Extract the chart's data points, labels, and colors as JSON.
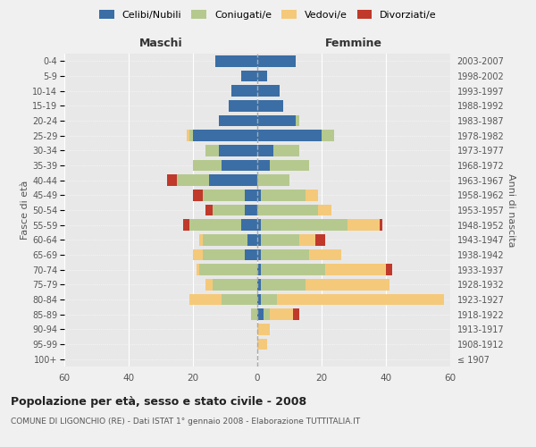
{
  "age_groups": [
    "100+",
    "95-99",
    "90-94",
    "85-89",
    "80-84",
    "75-79",
    "70-74",
    "65-69",
    "60-64",
    "55-59",
    "50-54",
    "45-49",
    "40-44",
    "35-39",
    "30-34",
    "25-29",
    "20-24",
    "15-19",
    "10-14",
    "5-9",
    "0-4"
  ],
  "birth_years": [
    "≤ 1907",
    "1908-1912",
    "1913-1917",
    "1918-1922",
    "1923-1927",
    "1928-1932",
    "1933-1937",
    "1938-1942",
    "1943-1947",
    "1948-1952",
    "1953-1957",
    "1958-1962",
    "1963-1967",
    "1968-1972",
    "1973-1977",
    "1978-1982",
    "1983-1987",
    "1988-1992",
    "1993-1997",
    "1998-2002",
    "2003-2007"
  ],
  "male": {
    "celibi": [
      0,
      0,
      0,
      0,
      0,
      0,
      0,
      4,
      3,
      5,
      4,
      4,
      15,
      11,
      12,
      20,
      12,
      9,
      8,
      5,
      13
    ],
    "coniugati": [
      0,
      0,
      0,
      2,
      11,
      14,
      18,
      13,
      14,
      16,
      10,
      13,
      10,
      9,
      4,
      1,
      0,
      0,
      0,
      0,
      0
    ],
    "vedovi": [
      0,
      0,
      0,
      0,
      10,
      2,
      1,
      3,
      1,
      0,
      0,
      0,
      0,
      0,
      0,
      1,
      0,
      0,
      0,
      0,
      0
    ],
    "divorziati": [
      0,
      0,
      0,
      0,
      0,
      0,
      0,
      0,
      0,
      2,
      2,
      3,
      3,
      0,
      0,
      0,
      0,
      0,
      0,
      0,
      0
    ]
  },
  "female": {
    "nubili": [
      0,
      0,
      0,
      2,
      1,
      1,
      1,
      1,
      1,
      1,
      0,
      1,
      0,
      4,
      5,
      20,
      12,
      8,
      7,
      3,
      12
    ],
    "coniugate": [
      0,
      0,
      0,
      2,
      5,
      14,
      20,
      15,
      12,
      27,
      19,
      14,
      10,
      12,
      8,
      4,
      1,
      0,
      0,
      0,
      0
    ],
    "vedove": [
      0,
      3,
      4,
      7,
      52,
      26,
      19,
      10,
      5,
      10,
      4,
      4,
      0,
      0,
      0,
      0,
      0,
      0,
      0,
      0,
      0
    ],
    "divorziate": [
      0,
      0,
      0,
      2,
      0,
      0,
      2,
      0,
      3,
      1,
      0,
      0,
      0,
      0,
      0,
      0,
      0,
      0,
      0,
      0,
      0
    ]
  },
  "colors": {
    "celibi_nubili": "#3a6ea5",
    "coniugati": "#b5c98e",
    "vedovi": "#f5c97a",
    "divorziati": "#c0392b"
  },
  "xlim": 60,
  "title1": "Popolazione per età, sesso e stato civile - 2008",
  "title2": "COMUNE DI LIGONCHIO (RE) - Dati ISTAT 1° gennaio 2008 - Elaborazione TUTTITALIA.IT",
  "ylabel_left": "Fasce di età",
  "ylabel_right": "Anni di nascita",
  "xlabel_maschi": "Maschi",
  "xlabel_femmine": "Femmine",
  "bg_color": "#f0f0f0",
  "plot_bg_color": "#e8e8e8"
}
